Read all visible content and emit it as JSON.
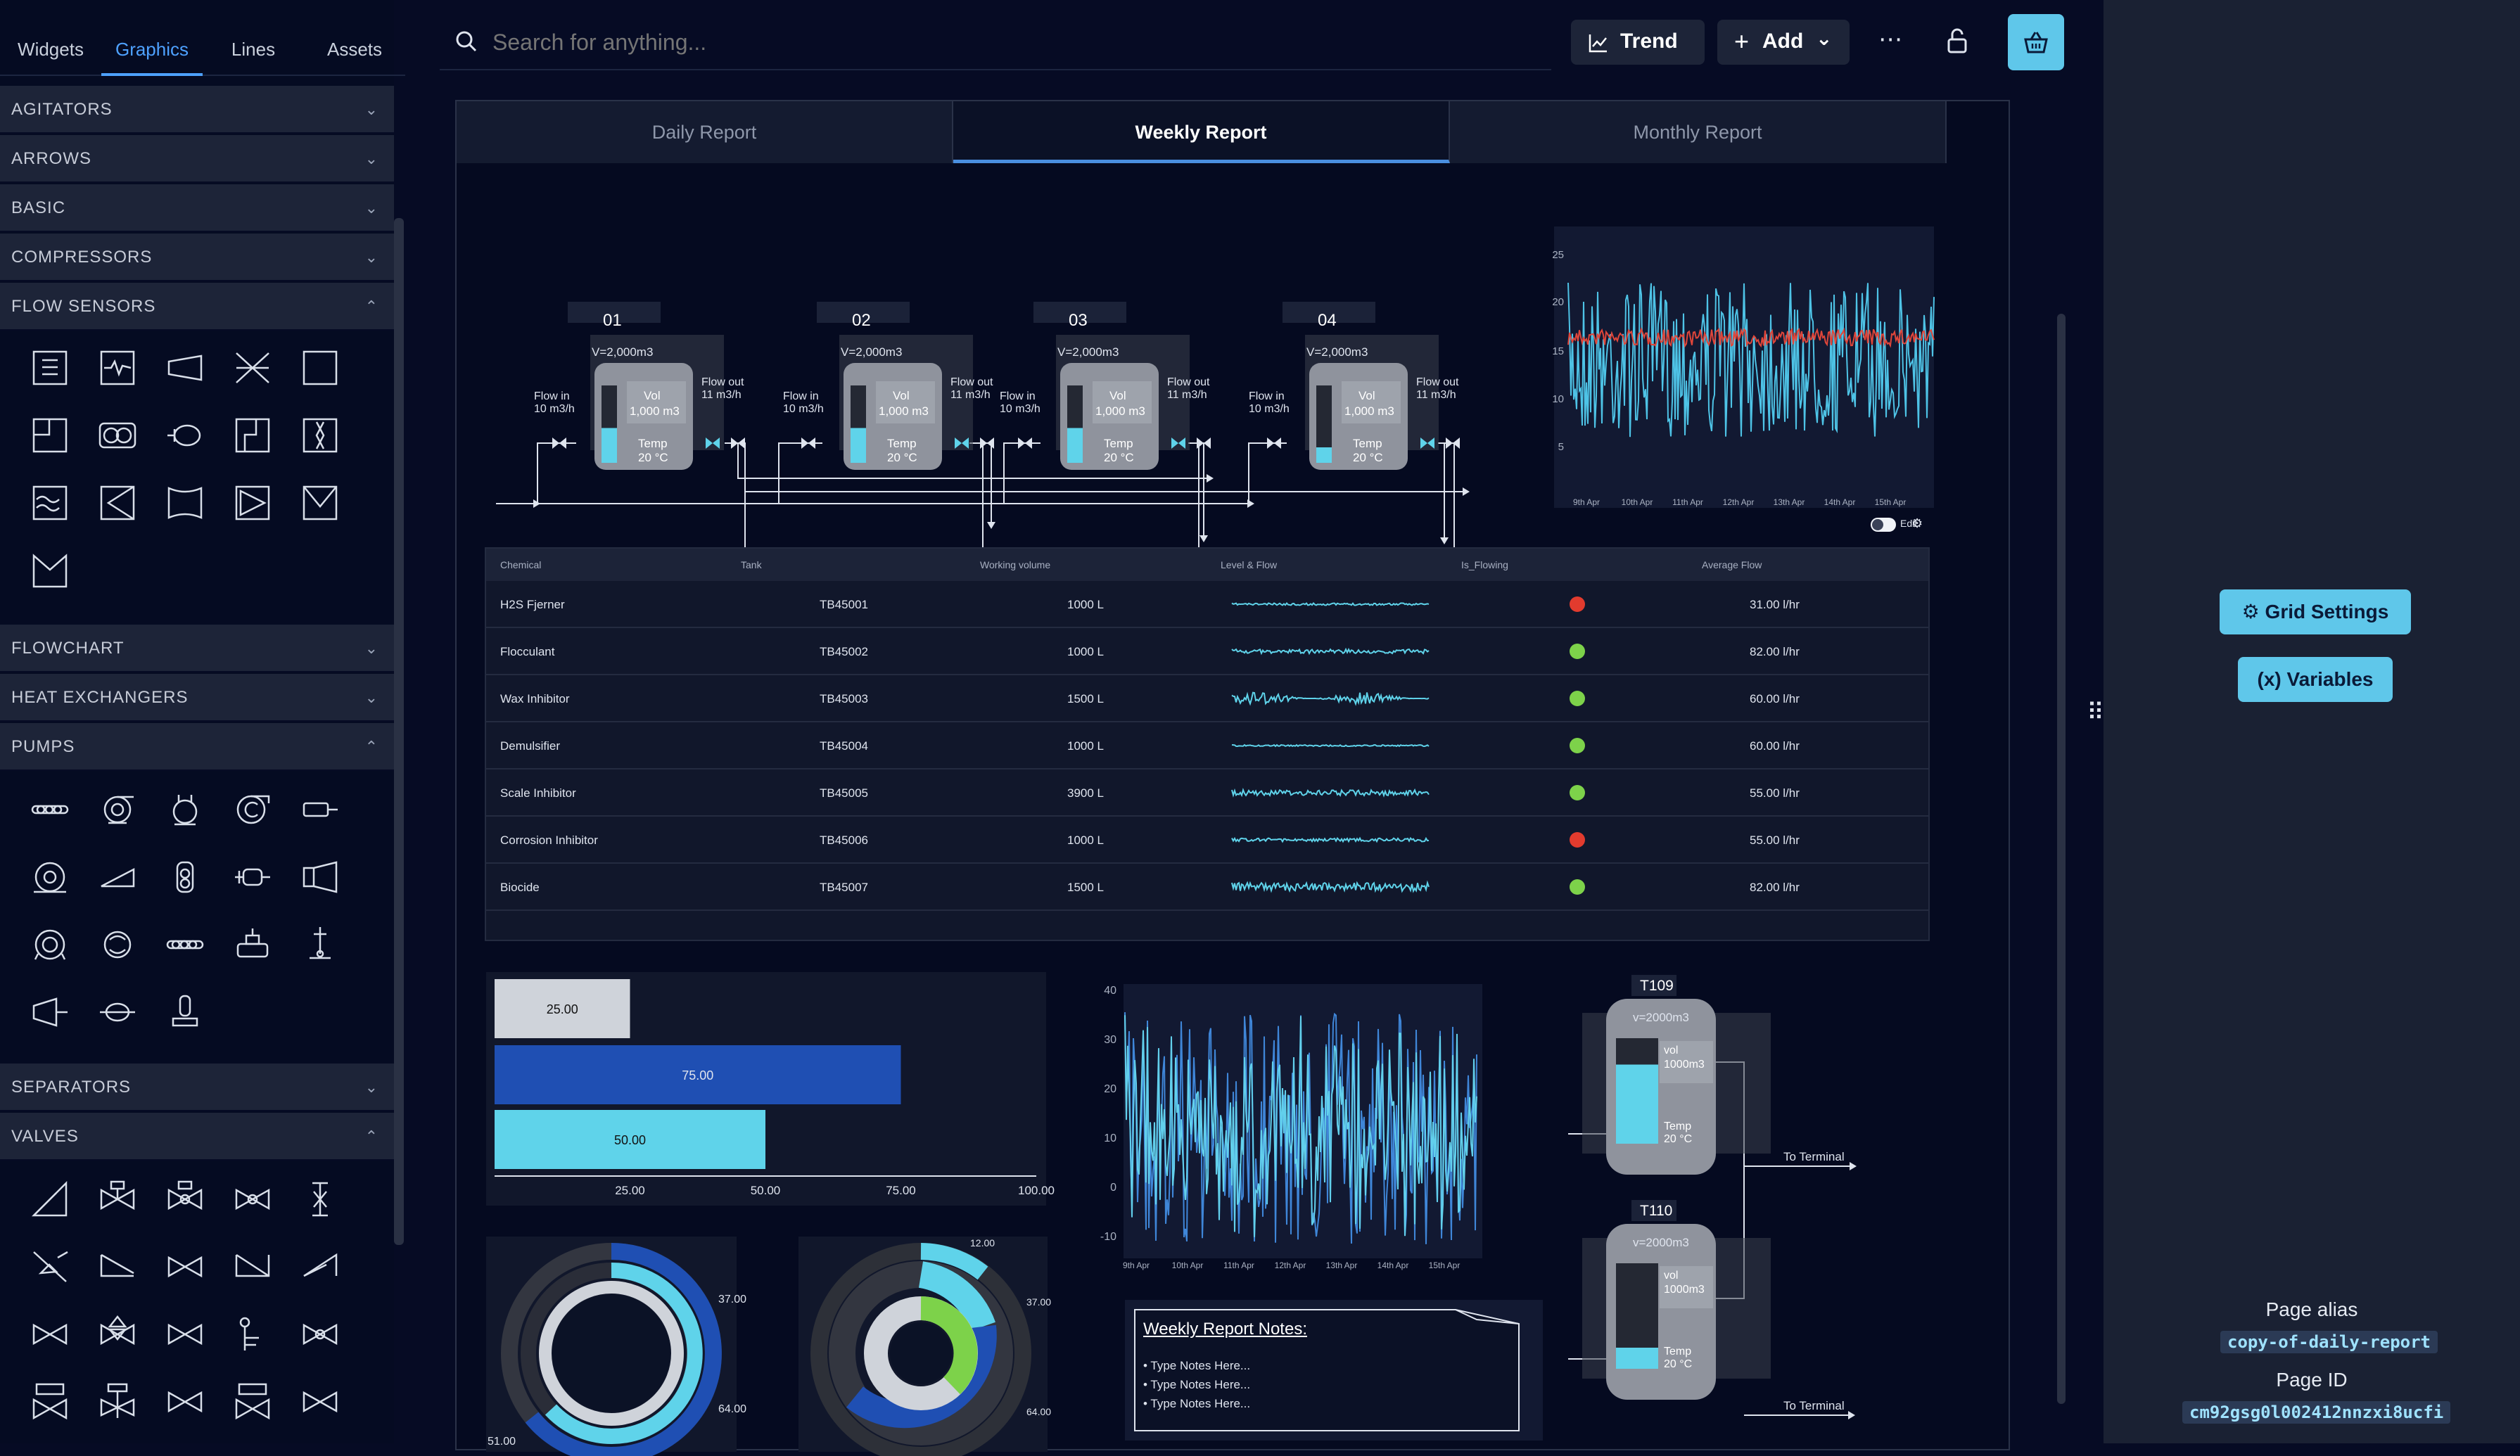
{
  "left_tabs": [
    "Widgets",
    "Graphics",
    "Lines",
    "Assets"
  ],
  "categories": [
    {
      "label": "AGITATORS",
      "state": "collapsed"
    },
    {
      "label": "ARROWS",
      "state": "collapsed"
    },
    {
      "label": "BASIC",
      "state": "collapsed"
    },
    {
      "label": "COMPRESSORS",
      "state": "collapsed"
    },
    {
      "label": "FLOW SENSORS",
      "state": "expanded"
    },
    {
      "label": "FLOWCHART",
      "state": "collapsed"
    },
    {
      "label": "HEAT EXCHANGERS",
      "state": "collapsed"
    },
    {
      "label": "PUMPS",
      "state": "expanded"
    },
    {
      "label": "SEPARATORS",
      "state": "collapsed"
    },
    {
      "label": "VALVES",
      "state": "expanded"
    }
  ],
  "search": {
    "placeholder": "Search for anything..."
  },
  "toolbar": {
    "trend": "Trend",
    "add": "Add"
  },
  "report_tabs": [
    "Daily Report",
    "Weekly Report",
    "Monthly Report"
  ],
  "tanks": [
    {
      "id": "01",
      "volume": "V=2,000m3",
      "flow_in": "Flow in",
      "flow_in_rate": "10 m3/h",
      "flow_out": "Flow out",
      "flow_out_rate": "11 m3/h",
      "vol": "Vol",
      "vol_val": "1,000 m3",
      "temp": "Temp",
      "temp_val": "20 °C",
      "level": 0.45
    },
    {
      "id": "02",
      "volume": "V=2,000m3",
      "flow_in": "Flow in",
      "flow_in_rate": "10 m3/h",
      "flow_out": "Flow out",
      "flow_out_rate": "11 m3/h",
      "vol": "Vol",
      "vol_val": "1,000 m3",
      "temp": "Temp",
      "temp_val": "20 °C",
      "level": 0.45
    },
    {
      "id": "03",
      "volume": "V=2,000m3",
      "flow_in": "Flow in",
      "flow_in_rate": "10 m3/h",
      "flow_out": "Flow out",
      "flow_out_rate": "11 m3/h",
      "vol": "Vol",
      "vol_val": "1,000 m3",
      "temp": "Temp",
      "temp_val": "20 °C",
      "level": 0.45
    },
    {
      "id": "04",
      "volume": "V=2,000m3",
      "flow_in": "Flow in",
      "flow_in_rate": "10 m3/h",
      "flow_out": "Flow out",
      "flow_out_rate": "11 m3/h",
      "vol": "Vol",
      "vol_val": "1,000 m3",
      "temp": "Temp",
      "temp_val": "20 °C",
      "level": 0.2
    }
  ],
  "to_terminal": "To Terminal",
  "trend_top": {
    "yticks": [
      "25",
      "20",
      "15",
      "10",
      "5"
    ],
    "xticks": [
      "9th Apr",
      "10th Apr",
      "11th Apr",
      "12th Apr",
      "13th Apr",
      "14th Apr",
      "15th Apr"
    ]
  },
  "table": {
    "edit_label": "Edit",
    "headers": [
      "Chemical",
      "Tank",
      "Working volume",
      "Level & Flow",
      "Is_Flowing",
      "Average Flow"
    ],
    "rows": [
      {
        "chemical": "H2S Fjerner",
        "tank": "TB45001",
        "volume": "1000 L",
        "flowing": false,
        "avg": "31.00 l/hr"
      },
      {
        "chemical": "Flocculant",
        "tank": "TB45002",
        "volume": "1000 L",
        "flowing": true,
        "avg": "82.00 l/hr"
      },
      {
        "chemical": "Wax Inhibitor",
        "tank": "TB45003",
        "volume": "1500 L",
        "flowing": true,
        "avg": "60.00 l/hr"
      },
      {
        "chemical": "Demulsifier",
        "tank": "TB45004",
        "volume": "1000 L",
        "flowing": true,
        "avg": "60.00 l/hr"
      },
      {
        "chemical": "Scale Inhibitor",
        "tank": "TB45005",
        "volume": "3900 L",
        "flowing": true,
        "avg": "55.00 l/hr"
      },
      {
        "chemical": "Corrosion Inhibitor",
        "tank": "TB45006",
        "volume": "1000 L",
        "flowing": false,
        "avg": "55.00 l/hr"
      },
      {
        "chemical": "Biocide",
        "tank": "TB45007",
        "volume": "1500 L",
        "flowing": true,
        "avg": "82.00 l/hr"
      }
    ]
  },
  "chart_data": [
    {
      "type": "bar",
      "orientation": "horizontal",
      "values": [
        25,
        75,
        50
      ],
      "labels": [
        "25.00",
        "75.00",
        "50.00"
      ],
      "xticks": [
        "25.00",
        "50.00",
        "75.00",
        "100.00"
      ],
      "xlim": [
        0,
        100
      ],
      "colors": [
        "#cfd3da",
        "#1f4fb3",
        "#5fd3ea"
      ]
    },
    {
      "type": "line",
      "yticks": [
        "40",
        "30",
        "20",
        "10",
        "0",
        "-10"
      ],
      "xticks": [
        "9th Apr",
        "10th Apr",
        "11th Apr",
        "12th Apr",
        "13th Apr",
        "14th Apr",
        "15th Apr"
      ],
      "ylim": [
        -10,
        40
      ]
    },
    {
      "type": "pie",
      "variant": "donut",
      "labels": [
        "37.00",
        "64.00",
        "51.00"
      ]
    },
    {
      "type": "pie",
      "variant": "donut",
      "labels": [
        "12.00",
        "37.00",
        "64.00"
      ]
    }
  ],
  "notes": {
    "title": "Weekly Report Notes:",
    "items": [
      "Type Notes Here...",
      "Type Notes Here...",
      "Type Notes Here..."
    ]
  },
  "tanks_small": [
    {
      "id": "T109",
      "volume": "v=2000m3",
      "vol": "vol",
      "vol_val": "1000m3",
      "temp": "Temp",
      "temp_val": "20 °C",
      "level": 0.75
    },
    {
      "id": "T110",
      "volume": "v=2000m3",
      "vol": "vol",
      "vol_val": "1000m3",
      "temp": "Temp",
      "temp_val": "20 °C",
      "level": 0.2
    }
  ],
  "right": {
    "grid_settings": "Grid Settings",
    "variables": "Variables",
    "alias_label": "Page alias",
    "alias": "copy-of-daily-report",
    "id_label": "Page ID",
    "id": "cm92gsg0l002412nnzxi8ucfi"
  },
  "colors": {
    "accent": "#4ea1ff",
    "cyan": "#5fd3ea",
    "red": "#e23b2e",
    "green": "#7dd24a",
    "navy": "#1f4fb3"
  }
}
